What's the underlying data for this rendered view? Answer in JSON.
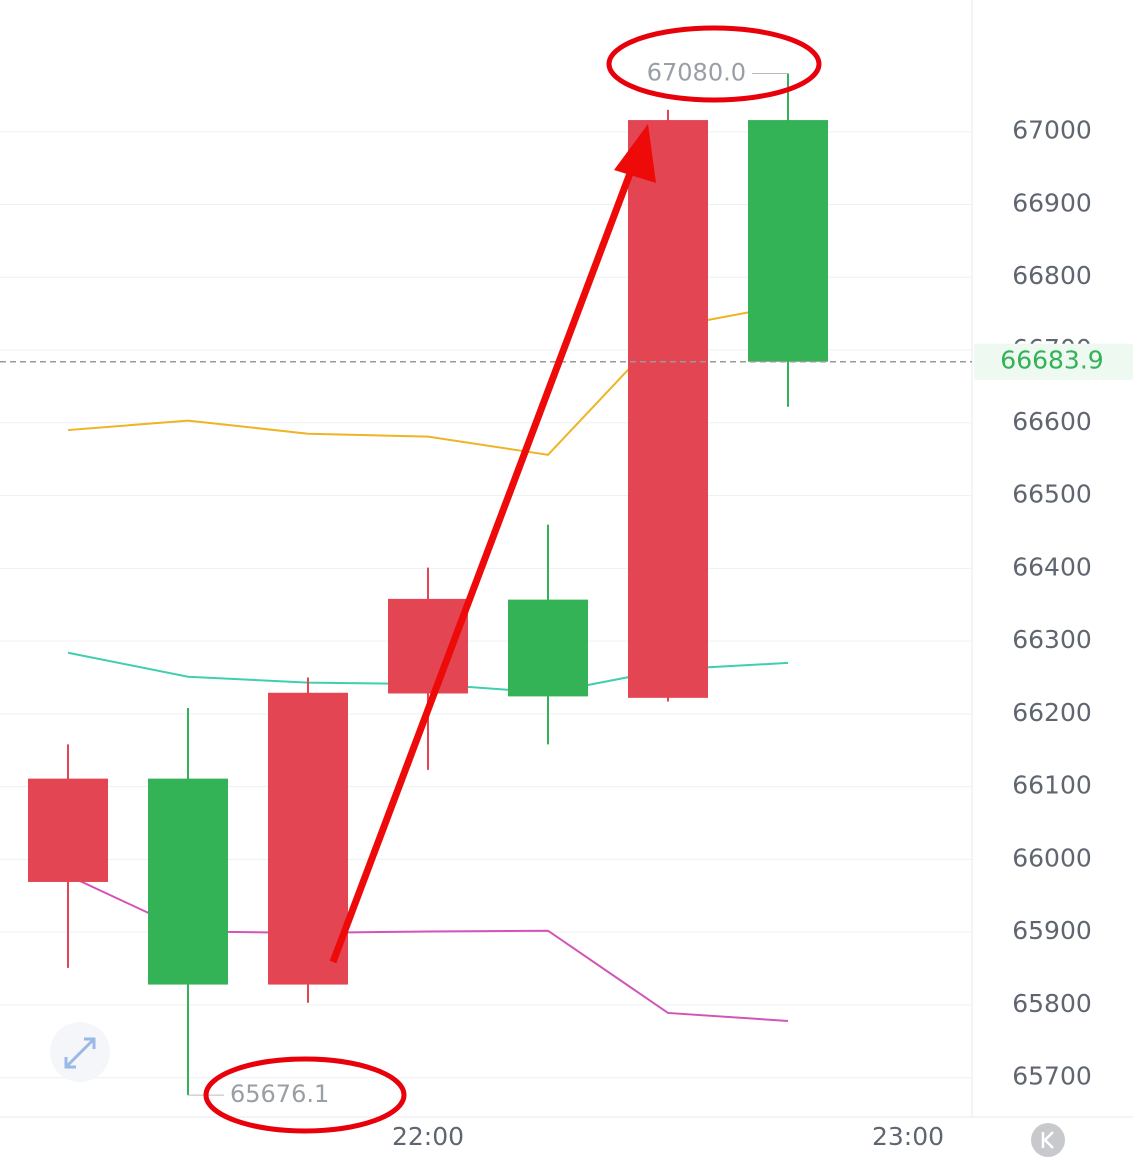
{
  "chart_data": {
    "type": "candlestick",
    "categories": [
      null,
      null,
      null,
      "22:00",
      null,
      null,
      null,
      "23:00"
    ],
    "open": [
      65969,
      66111,
      65828,
      66228,
      66357,
      66222,
      67016,
      null
    ],
    "high": [
      66158,
      66208,
      66250,
      66401,
      66460,
      67030,
      67080,
      null
    ],
    "low": [
      65851,
      65676.1,
      65803,
      66123,
      66158,
      66217,
      66622,
      null
    ],
    "close": [
      66111,
      65828,
      66229,
      66358,
      66224,
      67016,
      66683.9,
      null
    ],
    "up_color": "#e34553",
    "down_color": "#33b356",
    "series": [
      {
        "color": "#f0b323",
        "values": [
          66590,
          66603,
          66585,
          66581,
          66556,
          66731,
          66762,
          null
        ]
      },
      {
        "color": "#3fcfae",
        "values": [
          66284,
          66251,
          66243,
          66241,
          66229,
          66261,
          66270,
          null
        ]
      },
      {
        "color": "#d354b6",
        "values": [
          65978,
          65901,
          65899,
          65901,
          65902,
          65789,
          65778,
          null
        ]
      }
    ],
    "ylim": [
      65646,
      67181
    ],
    "yticks": [
      65700,
      65800,
      65900,
      66000,
      66100,
      66200,
      66300,
      66400,
      66500,
      66600,
      66700,
      66800,
      66900,
      67000
    ],
    "grid": true,
    "max_label": {
      "value": 67080,
      "label": "67080.0"
    },
    "min_label": 65676.1,
    "last_price": 66683.9
  }
}
